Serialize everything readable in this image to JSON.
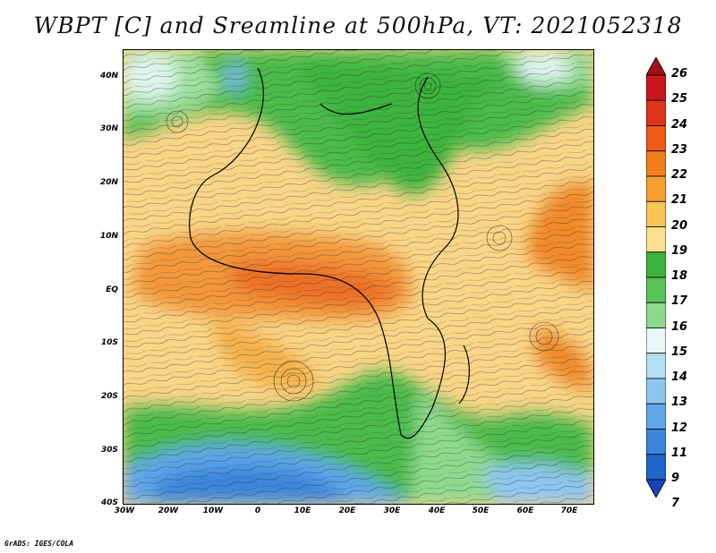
{
  "title": "WBPT [C] and Sreamline at 500hPa, VT: 2021052318",
  "footer": "GrADS: IGES/COLA",
  "latitude_labels": [
    "40N",
    "30N",
    "20N",
    "10N",
    "EQ",
    "10S",
    "20S",
    "30S",
    "40S"
  ],
  "longitude_labels": [
    "30W",
    "20W",
    "10W",
    "0",
    "10E",
    "20E",
    "30E",
    "40E",
    "50E",
    "60E",
    "70E"
  ],
  "colorbar": {
    "labels": [
      "26",
      "25",
      "24",
      "23",
      "22",
      "21",
      "20",
      "19",
      "18",
      "17",
      "16",
      "15",
      "14",
      "13",
      "12",
      "11",
      "9",
      "7"
    ],
    "colors": [
      "#a50f15",
      "#c8161d",
      "#e0341a",
      "#ef5a16",
      "#f27e1c",
      "#f5a030",
      "#f8c557",
      "#fbe08e",
      "#3cb43c",
      "#58c458",
      "#8fd98f",
      "#e8f7f7",
      "#b4dff5",
      "#8ec6f0",
      "#62a8e8",
      "#3a86dc",
      "#1f66cc",
      "#1446b8"
    ]
  },
  "map": {
    "region": "Africa and Atlantic, 30W-75E, 40S-45N",
    "variable": "wet bulb potential temperature",
    "level": "500hPa"
  }
}
